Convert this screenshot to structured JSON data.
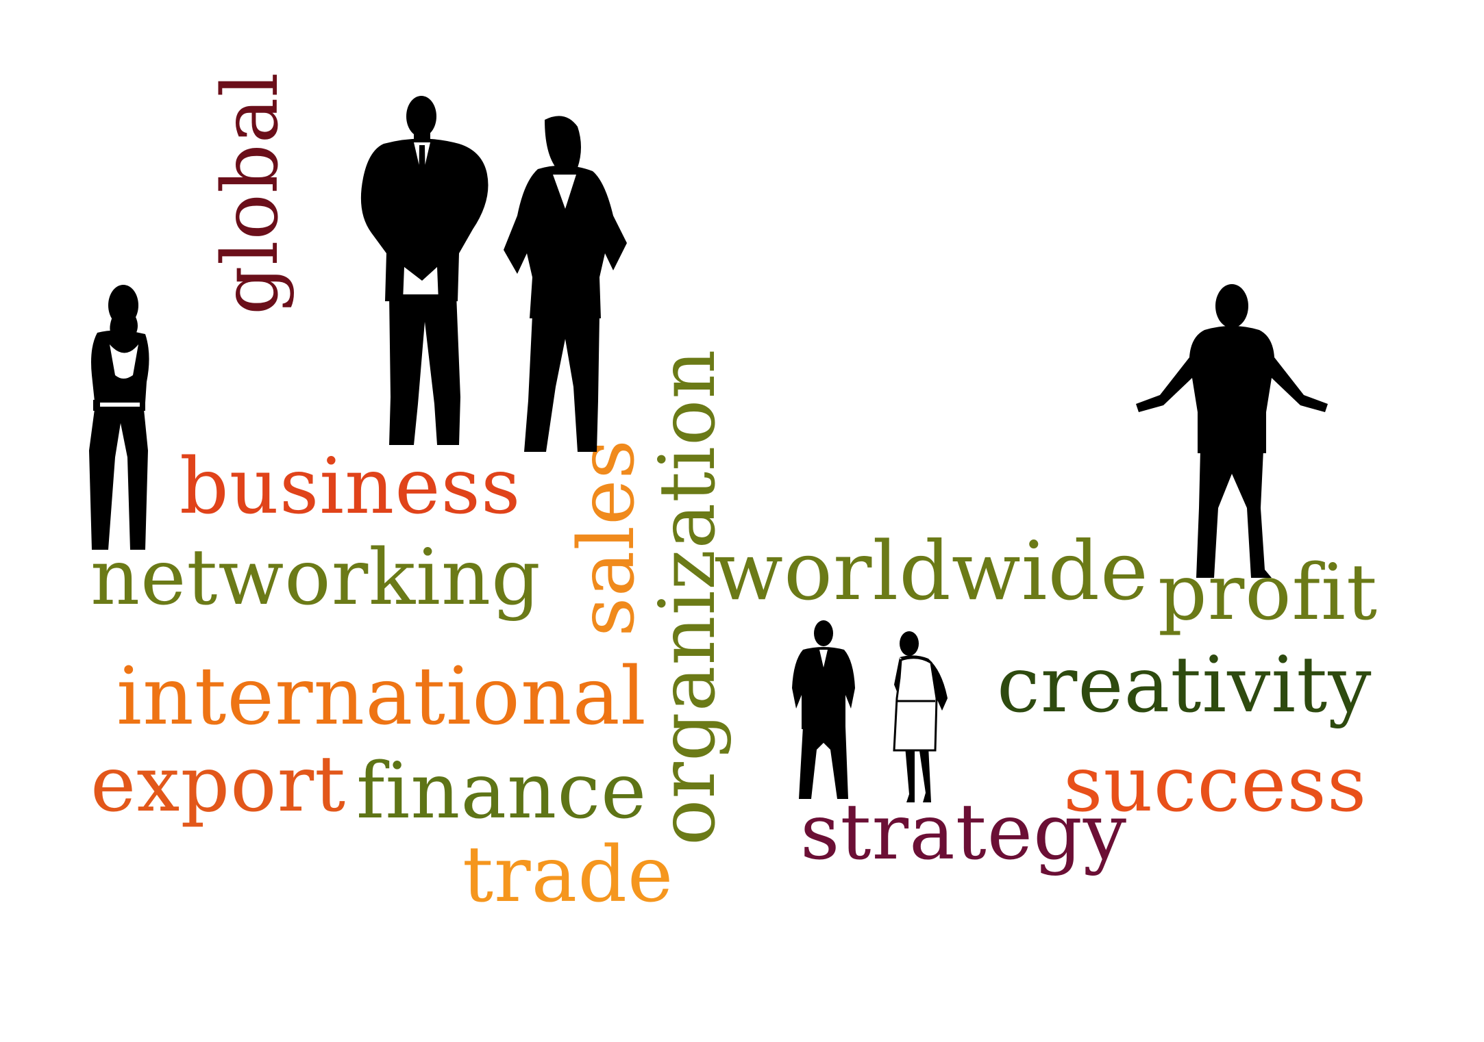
{
  "cloud": {
    "words": {
      "global": {
        "text": "global",
        "color": "#6b0f1a"
      },
      "business": {
        "text": "business",
        "color": "#e0431a"
      },
      "networking": {
        "text": "networking",
        "color": "#6b7a17"
      },
      "sales": {
        "text": "sales",
        "color": "#f08a1c"
      },
      "organization": {
        "text": "organization",
        "color": "#6b7a17"
      },
      "worldwide": {
        "text": "worldwide",
        "color": "#6b7a17"
      },
      "profit": {
        "text": "profit",
        "color": "#6b7a17"
      },
      "creativity": {
        "text": "creativity",
        "color": "#2e4a0f"
      },
      "international": {
        "text": "international",
        "color": "#ee7414"
      },
      "export": {
        "text": "export",
        "color": "#e2571a"
      },
      "finance": {
        "text": "finance",
        "color": "#5e7416"
      },
      "trade": {
        "text": "trade",
        "color": "#f5961e"
      },
      "success": {
        "text": "success",
        "color": "#e8501a"
      },
      "strategy": {
        "text": "strategy",
        "color": "#6b0f35"
      }
    },
    "figures": [
      "woman-arms-crossed-icon",
      "man-in-suit-hands-in-pockets-icon",
      "woman-in-suit-hands-on-hips-icon",
      "man-with-open-arms-icon",
      "small-man-in-suit-icon",
      "small-woman-on-phone-icon"
    ],
    "silhouette_color": "#000000"
  }
}
